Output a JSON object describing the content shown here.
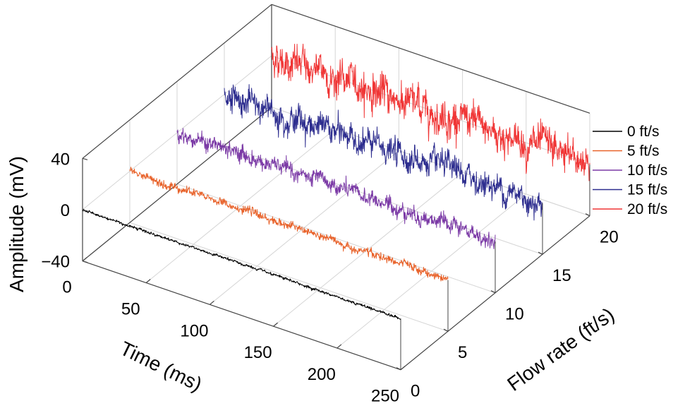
{
  "chart_data": {
    "type": "line",
    "projection": "3d",
    "title": "",
    "xlabel": "Time (ms)",
    "ylabel": "Flow rate (ft/s)",
    "zlabel": "Amplitude (mV)",
    "xlim": [
      0,
      250
    ],
    "ylim": [
      0,
      20
    ],
    "zlim": [
      -40,
      40
    ],
    "xticks": [
      "0",
      "50",
      "100",
      "150",
      "200",
      "250"
    ],
    "yticks": [
      "0",
      "5",
      "10",
      "15",
      "20"
    ],
    "zticks": [
      "−40",
      "0",
      "40"
    ],
    "grid": true,
    "legend_position": "right",
    "series": [
      {
        "name": "0 ft/s",
        "flow": 0,
        "color": "#000000",
        "noise_amplitude_mV": 1
      },
      {
        "name": "5 ft/s",
        "flow": 5,
        "color": "#e8622a",
        "noise_amplitude_mV": 3
      },
      {
        "name": "10 ft/s",
        "flow": 10,
        "color": "#7b3aa6",
        "noise_amplitude_mV": 6
      },
      {
        "name": "15 ft/s",
        "flow": 15,
        "color": "#2e2e8f",
        "noise_amplitude_mV": 10
      },
      {
        "name": "20 ft/s",
        "flow": 20,
        "color": "#f03535",
        "noise_amplitude_mV": 13
      }
    ]
  }
}
